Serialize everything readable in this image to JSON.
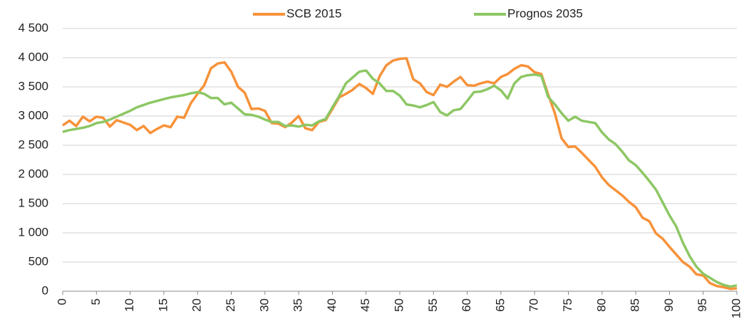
{
  "chart_data": {
    "type": "line",
    "x": [
      0,
      1,
      2,
      3,
      4,
      5,
      6,
      7,
      8,
      9,
      10,
      11,
      12,
      13,
      14,
      15,
      16,
      17,
      18,
      19,
      20,
      21,
      22,
      23,
      24,
      25,
      26,
      27,
      28,
      29,
      30,
      31,
      32,
      33,
      34,
      35,
      36,
      37,
      38,
      39,
      40,
      41,
      42,
      43,
      44,
      45,
      46,
      47,
      48,
      49,
      50,
      51,
      52,
      53,
      54,
      55,
      56,
      57,
      58,
      59,
      60,
      61,
      62,
      63,
      64,
      65,
      66,
      67,
      68,
      69,
      70,
      71,
      72,
      73,
      74,
      75,
      76,
      77,
      78,
      79,
      80,
      81,
      82,
      83,
      84,
      85,
      86,
      87,
      88,
      89,
      90,
      91,
      92,
      93,
      94,
      95,
      96,
      97,
      98,
      99,
      100
    ],
    "series": [
      {
        "name": "SCB 2015",
        "color": "#f7923a",
        "values": [
          2840,
          2920,
          2830,
          2990,
          2910,
          2990,
          2970,
          2820,
          2930,
          2890,
          2850,
          2760,
          2830,
          2710,
          2780,
          2840,
          2810,
          2990,
          2970,
          3220,
          3380,
          3530,
          3820,
          3900,
          3920,
          3760,
          3500,
          3400,
          3120,
          3130,
          3090,
          2880,
          2870,
          2810,
          2890,
          3000,
          2790,
          2760,
          2900,
          2930,
          3120,
          3320,
          3380,
          3450,
          3550,
          3480,
          3380,
          3680,
          3870,
          3950,
          3980,
          3990,
          3630,
          3560,
          3410,
          3360,
          3540,
          3500,
          3590,
          3670,
          3530,
          3520,
          3560,
          3590,
          3560,
          3670,
          3720,
          3810,
          3870,
          3850,
          3750,
          3720,
          3370,
          3050,
          2620,
          2470,
          2480,
          2370,
          2250,
          2130,
          1950,
          1820,
          1730,
          1640,
          1530,
          1440,
          1260,
          1200,
          990,
          900,
          760,
          630,
          500,
          420,
          290,
          270,
          140,
          90,
          70,
          40,
          50
        ]
      },
      {
        "name": "Prognos 2035",
        "color": "#8dc764",
        "values": [
          2730,
          2760,
          2780,
          2800,
          2830,
          2880,
          2900,
          2940,
          2990,
          3040,
          3090,
          3150,
          3190,
          3230,
          3260,
          3290,
          3320,
          3340,
          3360,
          3390,
          3410,
          3380,
          3310,
          3310,
          3200,
          3230,
          3130,
          3030,
          3020,
          2990,
          2940,
          2900,
          2900,
          2830,
          2840,
          2820,
          2850,
          2840,
          2910,
          2950,
          3150,
          3340,
          3560,
          3660,
          3760,
          3780,
          3640,
          3560,
          3430,
          3430,
          3350,
          3200,
          3180,
          3150,
          3190,
          3240,
          3070,
          3010,
          3100,
          3120,
          3260,
          3410,
          3420,
          3460,
          3520,
          3440,
          3300,
          3560,
          3670,
          3700,
          3710,
          3690,
          3330,
          3200,
          3050,
          2920,
          2990,
          2920,
          2900,
          2880,
          2720,
          2600,
          2520,
          2390,
          2240,
          2160,
          2030,
          1890,
          1740,
          1520,
          1300,
          1110,
          830,
          600,
          420,
          300,
          230,
          160,
          110,
          80,
          100
        ]
      }
    ],
    "xlim": [
      0,
      100
    ],
    "xticks": [
      0,
      5,
      10,
      15,
      20,
      25,
      30,
      35,
      40,
      45,
      50,
      55,
      60,
      65,
      70,
      75,
      80,
      85,
      90,
      95,
      100
    ],
    "ylim": [
      0,
      4500
    ],
    "yticks": [
      0,
      500,
      {
        "value": 1000,
        "label": "1 000"
      },
      {
        "value": 1500,
        "label": "1 500"
      },
      {
        "value": 2000,
        "label": "2 000"
      },
      {
        "value": 2500,
        "label": "2 500"
      },
      {
        "value": 3000,
        "label": "3 000"
      },
      {
        "value": 3500,
        "label": "3 500"
      },
      {
        "value": 4000,
        "label": "4 000"
      },
      {
        "value": 4500,
        "label": "4 500"
      }
    ],
    "grid": true
  }
}
